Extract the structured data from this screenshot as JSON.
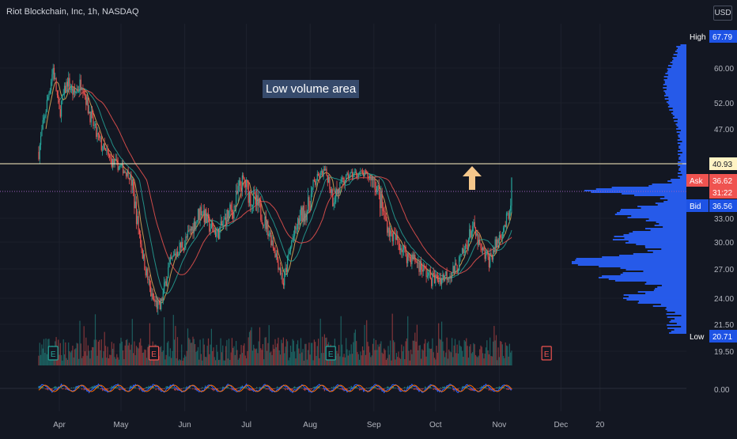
{
  "header": {
    "title": "Riot Blockchain, Inc, 1h, NASDAQ",
    "currency": "USD"
  },
  "annotation": {
    "text": "Low volume area"
  },
  "colors": {
    "background": "#131722",
    "up": "#26a69a",
    "down": "#ef5350",
    "resistance_line": "#fff3c4",
    "arrow": "#f5c78b",
    "volume_profile": "#2962ff"
  },
  "chart_data": {
    "type": "line",
    "symbol": "RIOT",
    "timeframe": "1h",
    "exchange": "NASDAQ",
    "x_ticks": [
      "Apr",
      "May",
      "Jun",
      "Jul",
      "Aug",
      "Sep",
      "Oct",
      "Nov",
      "Dec",
      "20"
    ],
    "y_ticks": [
      60.0,
      52.0,
      47.0,
      40.93,
      33.0,
      30.0,
      27.0,
      24.0,
      21.5,
      19.5
    ],
    "oscillator_ticks": [
      0.0
    ],
    "price_labels": {
      "high": {
        "label": "High",
        "value": "67.79"
      },
      "resistance": {
        "value": "40.93"
      },
      "ask": {
        "label": "Ask",
        "value": "36.62"
      },
      "countdown": {
        "value": "31:22"
      },
      "bid": {
        "label": "Bid",
        "value": "36.56"
      },
      "low": {
        "label": "Low",
        "value": "20.71"
      }
    },
    "price_path": [
      [
        "Mar 22",
        43
      ],
      [
        "Mar 26",
        52
      ],
      [
        "Mar 29",
        60
      ],
      [
        "Apr 1",
        50
      ],
      [
        "Apr 5",
        57
      ],
      [
        "Apr 8",
        54
      ],
      [
        "Apr 12",
        57
      ],
      [
        "Apr 15",
        51
      ],
      [
        "Apr 19",
        46
      ],
      [
        "Apr 23",
        43
      ],
      [
        "Apr 27",
        41
      ],
      [
        "May 1",
        40
      ],
      [
        "May 5",
        38
      ],
      [
        "May 8",
        34
      ],
      [
        "May 12",
        28
      ],
      [
        "May 16",
        24
      ],
      [
        "May 20",
        23
      ],
      [
        "May 24",
        27
      ],
      [
        "May 28",
        29
      ],
      [
        "Jun 1",
        30
      ],
      [
        "Jun 5",
        32
      ],
      [
        "Jun 9",
        34
      ],
      [
        "Jun 13",
        32
      ],
      [
        "Jun 17",
        31
      ],
      [
        "Jun 21",
        33
      ],
      [
        "Jun 25",
        34
      ],
      [
        "Jun 29",
        37
      ],
      [
        "Jul 3",
        35
      ],
      [
        "Jul 7",
        34
      ],
      [
        "Jul 11",
        32
      ],
      [
        "Jul 15",
        29
      ],
      [
        "Jul 19",
        25.5
      ],
      [
        "Jul 23",
        30
      ],
      [
        "Jul 27",
        33
      ],
      [
        "Jul 31",
        34
      ],
      [
        "Aug 4",
        37
      ],
      [
        "Aug 8",
        39
      ],
      [
        "Aug 12",
        35
      ],
      [
        "Aug 16",
        36
      ],
      [
        "Aug 20",
        38
      ],
      [
        "Aug 24",
        38.5
      ],
      [
        "Aug 28",
        38
      ],
      [
        "Sep 1",
        37
      ],
      [
        "Sep 5",
        34
      ],
      [
        "Sep 9",
        31
      ],
      [
        "Sep 13",
        30
      ],
      [
        "Sep 17",
        28.5
      ],
      [
        "Sep 21",
        28
      ],
      [
        "Sep 25",
        27
      ],
      [
        "Sep 29",
        26
      ],
      [
        "Oct 3",
        26
      ],
      [
        "Oct 7",
        26.5
      ],
      [
        "Oct 11",
        27
      ],
      [
        "Oct 15",
        29
      ],
      [
        "Oct 19",
        32
      ],
      [
        "Oct 23",
        29
      ],
      [
        "Oct 27",
        28
      ],
      [
        "Oct 31",
        30
      ],
      [
        "Nov 3",
        32
      ],
      [
        "Nov 6",
        33
      ],
      [
        "Nov 7",
        36.6
      ]
    ],
    "resistance_level": 40.93,
    "current_price": 36.62,
    "low_volume_area": [
      38.5,
      47
    ]
  }
}
